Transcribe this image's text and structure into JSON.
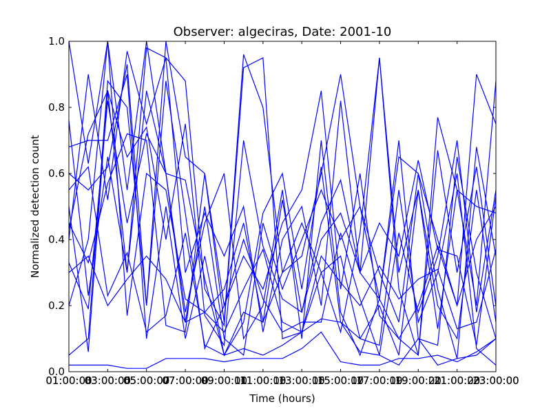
{
  "chart_data": {
    "type": "line",
    "title": "Observer: algeciras, Date: 2001-10",
    "xlabel": "Time (hours)",
    "ylabel": "Normalized detection count",
    "xlim": [
      "01:00:00",
      "23:00:00"
    ],
    "ylim": [
      0.0,
      1.0
    ],
    "x_ticks": [
      "01:00:00",
      "03:00:00",
      "05:00:00",
      "07:00:00",
      "09:00:00",
      "11:00:00",
      "13:00:00",
      "15:00:00",
      "17:00:00",
      "19:00:00",
      "21:00:00",
      "23:00:00"
    ],
    "x_ticks_overlap": [
      "01:00:03",
      "03:00:05",
      "05:00:07",
      "07:00:09",
      "09:00:11",
      "11:00:13",
      "13:00:15",
      "15:00:17",
      "17:00:19",
      "19:00:21",
      "21:00:23",
      "23:00:00"
    ],
    "y_ticks": [
      "0.0",
      "0.2",
      "0.4",
      "0.6",
      "0.8",
      "1.0"
    ],
    "grid": false,
    "legend": "none",
    "line_color": "#0000ff",
    "x": [
      "01:00",
      "02:00",
      "03:00",
      "04:00",
      "05:00",
      "06:00",
      "07:00",
      "08:00",
      "09:00",
      "10:00",
      "11:00",
      "12:00",
      "13:00",
      "14:00",
      "15:00",
      "16:00",
      "17:00",
      "18:00",
      "19:00",
      "20:00",
      "21:00",
      "22:00",
      "23:00"
    ],
    "series": [
      {
        "values": [
          1.0,
          0.63,
          1.0,
          0.55,
          1.0,
          0.6,
          0.15,
          0.5,
          0.1,
          0.05,
          0.45,
          0.25,
          0.4,
          0.55,
          0.4,
          0.5,
          0.3,
          0.15,
          0.6,
          0.4,
          0.2,
          0.9,
          0.75
        ]
      },
      {
        "values": [
          0.05,
          0.1,
          0.88,
          0.8,
          0.2,
          1.0,
          0.65,
          0.6,
          0.15,
          0.96,
          0.8,
          0.3,
          0.35,
          0.6,
          0.9,
          0.5,
          0.22,
          0.7,
          0.1,
          0.08,
          0.65,
          0.3,
          0.1
        ]
      },
      {
        "values": [
          0.68,
          0.7,
          0.7,
          0.9,
          0.1,
          0.5,
          0.1,
          0.35,
          0.05,
          0.15,
          0.48,
          0.6,
          0.25,
          0.62,
          0.15,
          0.1,
          0.2,
          0.05,
          0.55,
          0.13,
          0.55,
          0.5,
          0.48
        ]
      },
      {
        "values": [
          0.5,
          0.06,
          0.85,
          0.3,
          0.98,
          0.95,
          0.88,
          0.25,
          0.14,
          0.92,
          0.95,
          0.1,
          0.12,
          0.3,
          0.12,
          0.42,
          0.95,
          0.3,
          0.55,
          0.2,
          0.1,
          0.55,
          0.15
        ]
      },
      {
        "values": [
          0.4,
          0.9,
          0.52,
          0.97,
          0.75,
          0.95,
          0.3,
          0.48,
          0.35,
          0.5,
          0.12,
          0.4,
          0.5,
          0.2,
          0.82,
          0.3,
          0.95,
          0.25,
          0.05,
          0.77,
          0.55,
          0.2,
          0.88
        ]
      },
      {
        "values": [
          0.76,
          0.23,
          0.65,
          0.3,
          0.85,
          0.6,
          0.18,
          0.45,
          0.6,
          0.1,
          0.2,
          0.55,
          0.1,
          0.7,
          0.18,
          0.05,
          0.22,
          0.65,
          0.6,
          0.25,
          0.04,
          0.68,
          0.35
        ]
      },
      {
        "values": [
          0.2,
          0.4,
          1.0,
          0.17,
          0.6,
          0.55,
          0.22,
          0.18,
          0.25,
          0.45,
          0.15,
          0.3,
          0.45,
          0.3,
          0.35,
          0.1,
          0.08,
          0.55,
          0.15,
          0.3,
          0.6,
          0.07,
          0.02
        ]
      },
      {
        "values": [
          0.45,
          0.33,
          0.57,
          0.72,
          0.7,
          0.14,
          0.12,
          0.6,
          0.2,
          0.35,
          0.25,
          0.45,
          0.55,
          0.85,
          0.25,
          0.6,
          0.17,
          0.1,
          0.2,
          0.38,
          0.2,
          0.4,
          0.5
        ]
      },
      {
        "values": [
          0.6,
          0.55,
          0.62,
          0.93,
          0.2,
          0.88,
          0.48,
          0.07,
          0.2,
          0.4,
          0.22,
          0.12,
          0.15,
          0.15,
          0.42,
          0.22,
          0.05,
          0.42,
          0.18,
          0.35,
          0.7,
          0.18,
          0.55
        ]
      },
      {
        "values": [
          0.33,
          0.19,
          0.82,
          0.45,
          0.72,
          0.6,
          0.58,
          0.28,
          0.05,
          0.18,
          0.15,
          0.52,
          0.18,
          0.4,
          0.48,
          0.3,
          0.22,
          0.1,
          0.05,
          0.67,
          0.3,
          0.62,
          0.2
        ]
      },
      {
        "values": [
          0.02,
          0.02,
          0.02,
          0.01,
          0.01,
          0.04,
          0.04,
          0.04,
          0.03,
          0.04,
          0.04,
          0.04,
          0.07,
          0.12,
          0.03,
          0.02,
          0.02,
          0.04,
          0.04,
          0.05,
          0.03,
          0.06,
          0.1
        ]
      },
      {
        "values": [
          0.55,
          0.62,
          0.23,
          0.36,
          0.12,
          0.17,
          0.42,
          0.08,
          0.05,
          0.07,
          0.05,
          0.08,
          0.12,
          0.16,
          0.15,
          0.06,
          0.05,
          0.02,
          0.1,
          0.02,
          0.04,
          0.05,
          0.1
        ]
      },
      {
        "values": [
          0.3,
          0.35,
          0.2,
          0.28,
          0.35,
          0.28,
          0.15,
          0.18,
          0.12,
          0.25,
          0.37,
          0.15,
          0.12,
          0.35,
          0.27,
          0.2,
          0.32,
          0.22,
          0.28,
          0.31,
          0.13,
          0.15,
          0.37
        ]
      },
      {
        "values": [
          0.43,
          0.72,
          0.85,
          0.65,
          0.74,
          0.4,
          0.75,
          0.17,
          0.08,
          0.7,
          0.38,
          0.22,
          0.18,
          0.45,
          0.58,
          0.3,
          0.45,
          0.35,
          0.64,
          0.37,
          0.35,
          0.08,
          0.53
        ]
      }
    ]
  }
}
